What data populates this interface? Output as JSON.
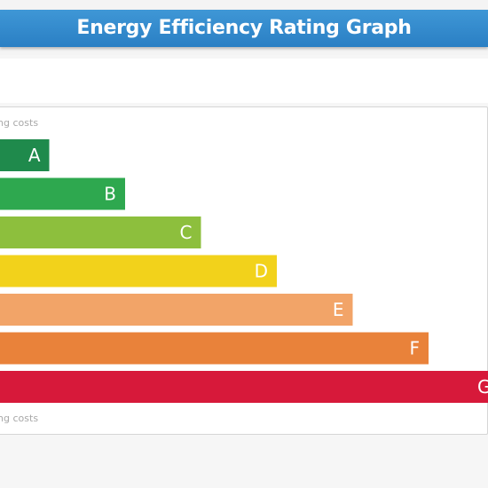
{
  "header": {
    "title": "Energy Efficiency Rating Graph"
  },
  "labels": {
    "top_cost": "ing costs",
    "bottom_cost": "ing costs"
  },
  "chart_data": {
    "type": "bar",
    "orientation": "horizontal",
    "title": "Energy Efficiency Rating Graph",
    "xlabel": "",
    "ylabel": "",
    "categories": [
      "A",
      "B",
      "C",
      "D",
      "E",
      "F",
      "G"
    ],
    "values": [
      1,
      2,
      3,
      4,
      5,
      6,
      7
    ],
    "colors": [
      "#1f8a4c",
      "#2ea84f",
      "#8dbf3d",
      "#f2d21b",
      "#f2a468",
      "#e9823a",
      "#d7193a"
    ],
    "grid": false,
    "legend": "none"
  }
}
